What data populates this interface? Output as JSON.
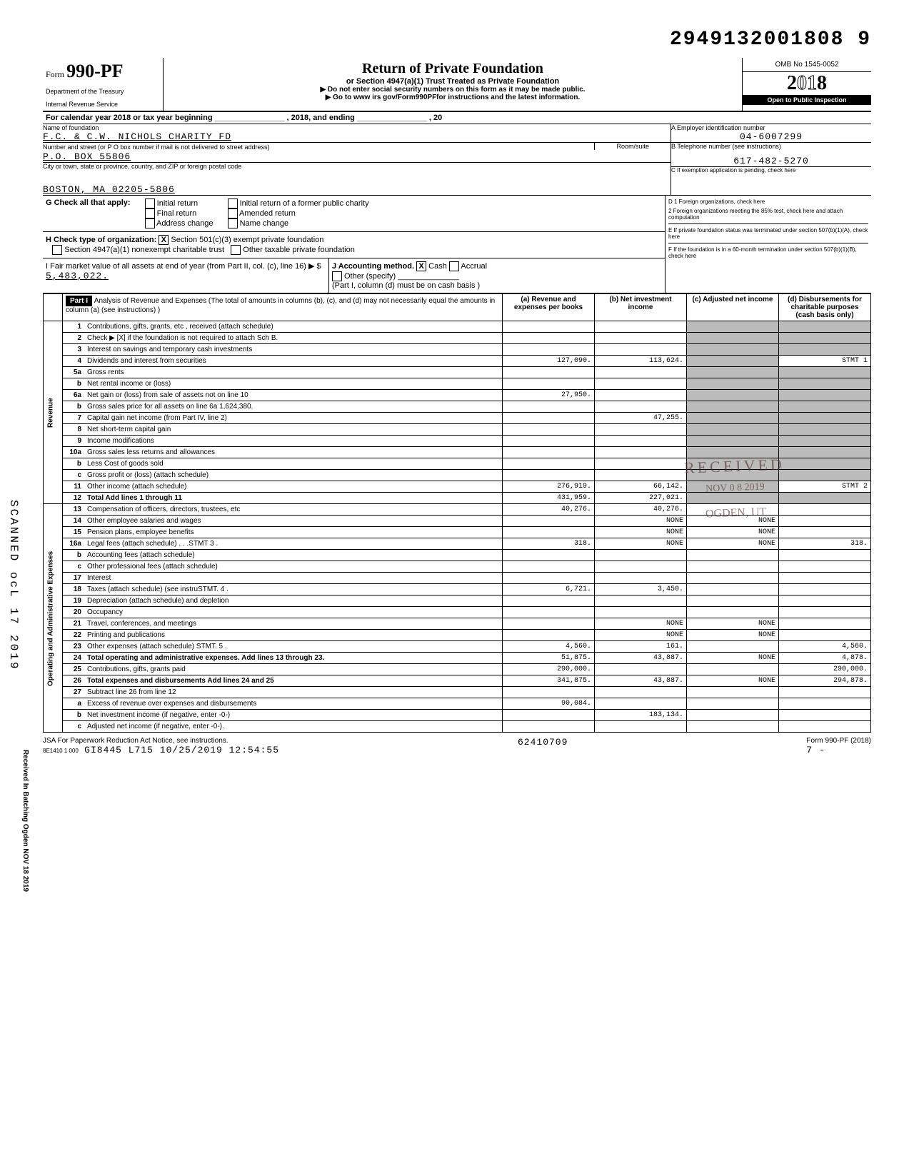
{
  "dln": "2949132001808 9",
  "form_no_prefix": "Form",
  "form_no": "990-PF",
  "dept1": "Department of the Treasury",
  "dept2": "Internal Revenue Service",
  "title": "Return of Private Foundation",
  "subtitle": "or Section 4947(a)(1) Trust Treated as Private Foundation",
  "inst1": "▶ Do not enter social security numbers on this form as it may be made public.",
  "inst2": "▶ Go to www irs gov/Form990PFfor instructions and the latest information.",
  "omb": "OMB No 1545-0052",
  "year": "2018",
  "open": "Open to Public Inspection",
  "cal_line": "For calendar year 2018 or tax year beginning",
  "cal_mid": ", 2018, and ending",
  "cal_end": ", 20",
  "name_label": "Name of foundation",
  "name": "F.C. & C.W. NICHOLS CHARITY FD",
  "addr_label": "Number and street (or P O  box number if mail is not delivered to street address)",
  "room_label": "Room/suite",
  "addr": "P.O. BOX 55806",
  "city_label": "City or town, state or province, country, and ZIP or foreign postal code",
  "city": "BOSTON, MA 02205-5806",
  "ein_label": "A  Employer identification number",
  "ein": "04-6007299",
  "tel_label": "B  Telephone number (see instructions)",
  "tel": "617-482-5270",
  "c_label": "C  If exemption application is pending, check here",
  "d1": "D  1  Foreign organizations, check here",
  "d2": "2  Foreign organizations meeting the 85% test, check here and attach computation",
  "e_label": "E  If private foundation status was terminated under section 507(b)(1)(A), check here",
  "f_label": "F  If the foundation is in a 60-month termination under section 507(b)(1)(B), check here",
  "g_label": "G Check all that apply:",
  "g_initial": "Initial return",
  "g_initial_former": "Initial return of a former public charity",
  "g_final": "Final return",
  "g_amended": "Amended return",
  "g_addr": "Address change",
  "g_name": "Name change",
  "h_label": "H Check type of organization:",
  "h_501": "Section 501(c)(3) exempt private foundation",
  "h_4947": "Section 4947(a)(1) nonexempt charitable trust",
  "h_other": "Other taxable private foundation",
  "i_label": "I  Fair market value of all assets at end of year (from Part II, col. (c), line 16) ▶ $",
  "i_val": "5,483,022.",
  "j_label": "J Accounting method.",
  "j_cash": "Cash",
  "j_accrual": "Accrual",
  "j_other": "Other (specify)",
  "j_note": "(Part I, column (d) must be on cash basis )",
  "part1": "Part I",
  "part1_title": "Analysis of Revenue and Expenses (The total of amounts in columns (b), (c), and (d) may not necessarily equal the amounts in column (a) (see instructions) )",
  "col_a": "(a) Revenue and expenses per books",
  "col_b": "(b) Net investment income",
  "col_c": "(c) Adjusted net income",
  "col_d": "(d) Disbursements for charitable purposes (cash basis only)",
  "side_rev": "Revenue",
  "side_exp": "Operating and Administrative Expenses",
  "rows": [
    {
      "n": "1",
      "d": "Contributions, gifts, grants, etc , received (attach schedule)"
    },
    {
      "n": "2",
      "d": "Check ▶ [X] if the foundation is not required to attach Sch B."
    },
    {
      "n": "3",
      "d": "Interest on savings and temporary cash investments"
    },
    {
      "n": "4",
      "d": "Dividends and interest from securities",
      "a": "127,090.",
      "b": "113,624.",
      "dcol": "STMT 1"
    },
    {
      "n": "5a",
      "d": "Gross rents"
    },
    {
      "n": "b",
      "d": "Net rental income or (loss)"
    },
    {
      "n": "6a",
      "d": "Net gain or (loss) from sale of assets not on line 10",
      "a": "27,950."
    },
    {
      "n": "b",
      "d": "Gross sales price for all assets on line 6a      1,624,380."
    },
    {
      "n": "7",
      "d": "Capital gain net income (from Part IV, line 2)",
      "b": "47,255."
    },
    {
      "n": "8",
      "d": "Net short-term capital gain"
    },
    {
      "n": "9",
      "d": "Income modifications"
    },
    {
      "n": "10a",
      "d": "Gross sales less returns and allowances"
    },
    {
      "n": "b",
      "d": "Less Cost of goods sold"
    },
    {
      "n": "c",
      "d": "Gross profit or (loss) (attach schedule)"
    },
    {
      "n": "11",
      "d": "Other income (attach schedule)",
      "a": "276,919.",
      "b": "66,142.",
      "dcol": "STMT 2"
    },
    {
      "n": "12",
      "d": "Total Add lines 1 through 11",
      "a": "431,959.",
      "b": "227,021.",
      "bold": true
    },
    {
      "n": "13",
      "d": "Compensation of officers, directors, trustees, etc",
      "a": "40,276.",
      "b": "40,276."
    },
    {
      "n": "14",
      "d": "Other employee salaries and wages",
      "b": "NONE",
      "c": "NONE"
    },
    {
      "n": "15",
      "d": "Pension plans, employee benefits",
      "b": "NONE",
      "c": "NONE"
    },
    {
      "n": "16a",
      "d": "Legal fees (attach schedule) . . .STMT 3 .",
      "a": "318.",
      "b": "NONE",
      "c": "NONE",
      "dcol": "318."
    },
    {
      "n": "b",
      "d": "Accounting fees (attach schedule)"
    },
    {
      "n": "c",
      "d": "Other professional fees (attach schedule)"
    },
    {
      "n": "17",
      "d": "Interest"
    },
    {
      "n": "18",
      "d": "Taxes (attach schedule) (see instruSTMT. 4 .",
      "a": "6,721.",
      "b": "3,450."
    },
    {
      "n": "19",
      "d": "Depreciation (attach schedule) and depletion"
    },
    {
      "n": "20",
      "d": "Occupancy"
    },
    {
      "n": "21",
      "d": "Travel, conferences, and meetings",
      "b": "NONE",
      "c": "NONE"
    },
    {
      "n": "22",
      "d": "Printing and publications",
      "b": "NONE",
      "c": "NONE"
    },
    {
      "n": "23",
      "d": "Other expenses (attach schedule) STMT. 5 .",
      "a": "4,560.",
      "b": "161.",
      "dcol": "4,560."
    },
    {
      "n": "24",
      "d": "Total operating and administrative expenses. Add lines 13 through 23.",
      "a": "51,875.",
      "b": "43,887.",
      "c": "NONE",
      "dcol": "4,878.",
      "bold": true
    },
    {
      "n": "25",
      "d": "Contributions, gifts, grants paid",
      "a": "290,000.",
      "dcol": "290,000."
    },
    {
      "n": "26",
      "d": "Total expenses and disbursements Add lines 24 and 25",
      "a": "341,875.",
      "b": "43,887.",
      "c": "NONE",
      "dcol": "294,878.",
      "bold": true
    },
    {
      "n": "27",
      "d": "Subtract line 26 from line 12"
    },
    {
      "n": "a",
      "d": "Excess of revenue over expenses and disbursements",
      "a": "90,084."
    },
    {
      "n": "b",
      "d": "Net investment income (if negative, enter -0-)",
      "b": "183,134."
    },
    {
      "n": "c",
      "d": "Adjusted net income (if negative, enter -0-)."
    }
  ],
  "recv_stamp_top": "RECEIVED",
  "recv_stamp_date": "NOV 0 8 2019",
  "recv_stamp_bot": "OGDEN, UT",
  "footer_left": "JSA For Paperwork Reduction Act Notice, see instructions.",
  "footer_code": "8E1410 1 000",
  "footer_mid": "GI8445 L715 10/25/2019 12:54:55",
  "footer_num": "62410709",
  "footer_form": "Form 990-PF (2018)",
  "footer_page": "7   -",
  "side_scan": "SCANNED ocL 17 2019",
  "side_recv": "Received In Batching Ogden   NOV 18 2019"
}
